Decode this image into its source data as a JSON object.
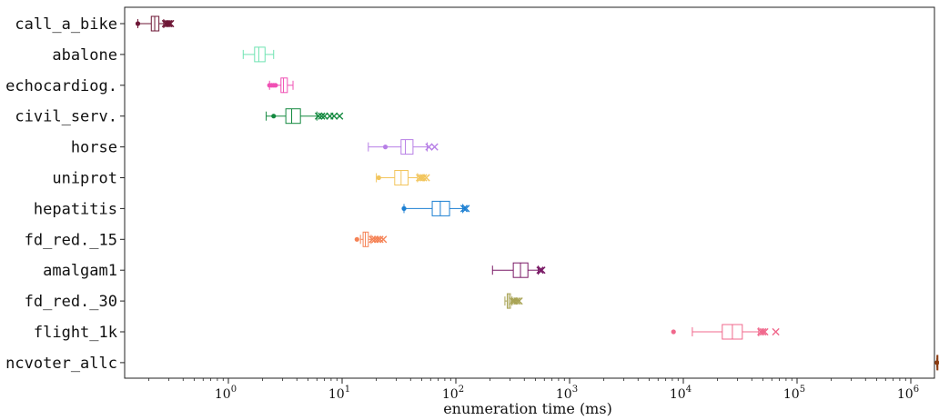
{
  "chart_data": {
    "type": "boxplot",
    "orientation": "horizontal",
    "xlabel": "enumeration time (ms)",
    "xscale": "log",
    "xlim": [
      0.14,
      1800000
    ],
    "xticks": [
      {
        "value": 1,
        "base": "10",
        "exp": "0"
      },
      {
        "value": 10,
        "base": "10",
        "exp": "1"
      },
      {
        "value": 100,
        "base": "10",
        "exp": "2"
      },
      {
        "value": 1000,
        "base": "10",
        "exp": "3"
      },
      {
        "value": 10000,
        "base": "10",
        "exp": "4"
      },
      {
        "value": 100000,
        "base": "10",
        "exp": "5"
      },
      {
        "value": 1000000,
        "base": "10",
        "exp": "6"
      }
    ],
    "grid": false,
    "series": [
      {
        "label": "call_a_bike",
        "color": "#6e1736",
        "whislo": 0.16,
        "q1": 0.21,
        "med": 0.225,
        "q3": 0.245,
        "whishi": 0.27,
        "fliers_low": [
          0.16
        ],
        "fliers_high": [
          0.28,
          0.29,
          0.3,
          0.31
        ]
      },
      {
        "label": "abalone",
        "color": "#6fe3b2",
        "whislo": 1.35,
        "q1": 1.7,
        "med": 1.85,
        "q3": 2.1,
        "whishi": 2.5,
        "fliers_low": [],
        "fliers_high": []
      },
      {
        "label": "echocardiog.",
        "color": "#f050b4",
        "whislo": 2.3,
        "q1": 2.9,
        "med": 3.05,
        "q3": 3.3,
        "whishi": 3.7,
        "fliers_low": [
          2.3,
          2.4,
          2.5,
          2.6
        ],
        "fliers_high": []
      },
      {
        "label": "civil_serv.",
        "color": "#13893f",
        "whislo": 2.15,
        "q1": 3.2,
        "med": 3.6,
        "q3": 4.3,
        "whishi": 6.0,
        "fliers_low": [
          2.5
        ],
        "fliers_high": [
          6.2,
          6.6,
          7.0,
          7.8,
          8.5,
          9.5
        ]
      },
      {
        "label": "horse",
        "color": "#b77fe6",
        "whislo": 17,
        "q1": 33,
        "med": 36,
        "q3": 42,
        "whishi": 56,
        "fliers_low": [
          24
        ],
        "fliers_high": [
          58,
          65
        ]
      },
      {
        "label": "uniprot",
        "color": "#f2c55c",
        "whislo": 20,
        "q1": 29,
        "med": 33,
        "q3": 38,
        "whishi": 46,
        "fliers_low": [
          21
        ],
        "fliers_high": [
          48,
          50,
          52,
          55
        ]
      },
      {
        "label": "hepatitis",
        "color": "#1c7fd2",
        "whislo": 35,
        "q1": 62,
        "med": 73,
        "q3": 88,
        "whishi": 115,
        "fliers_low": [
          35
        ],
        "fliers_high": [
          118,
          123
        ]
      },
      {
        "label": "fd_red._15",
        "color": "#f58255",
        "whislo": 14.5,
        "q1": 15.3,
        "med": 16.0,
        "q3": 17.0,
        "whishi": 18.0,
        "fliers_low": [
          13.5
        ],
        "fliers_high": [
          18.5,
          19.5,
          20.5,
          21.5,
          23
        ]
      },
      {
        "label": "amalgam1",
        "color": "#7a1a66",
        "whislo": 210,
        "q1": 320,
        "med": 370,
        "q3": 430,
        "whishi": 530,
        "fliers_low": [],
        "fliers_high": [
          550,
          570
        ]
      },
      {
        "label": "fd_red._30",
        "color": "#a8a354",
        "whislo": 270,
        "q1": 283,
        "med": 292,
        "q3": 302,
        "whishi": 312,
        "fliers_low": [],
        "fliers_high": [
          318,
          330,
          345,
          360
        ]
      },
      {
        "label": "flight_1k",
        "color": "#f0688c",
        "whislo": 12000,
        "q1": 22000,
        "med": 27000,
        "q3": 33000,
        "whishi": 46000,
        "fliers_low": [
          8200
        ],
        "fliers_high": [
          48000,
          50000,
          52000,
          65000
        ]
      },
      {
        "label": "ncvoter_allc",
        "color": "#8c3c12",
        "whislo": 1700000,
        "q1": 1700000,
        "med": 1700000,
        "q3": 1700000,
        "whishi": 1700000,
        "fliers_low": [
          1700000
        ],
        "fliers_high": []
      }
    ]
  }
}
